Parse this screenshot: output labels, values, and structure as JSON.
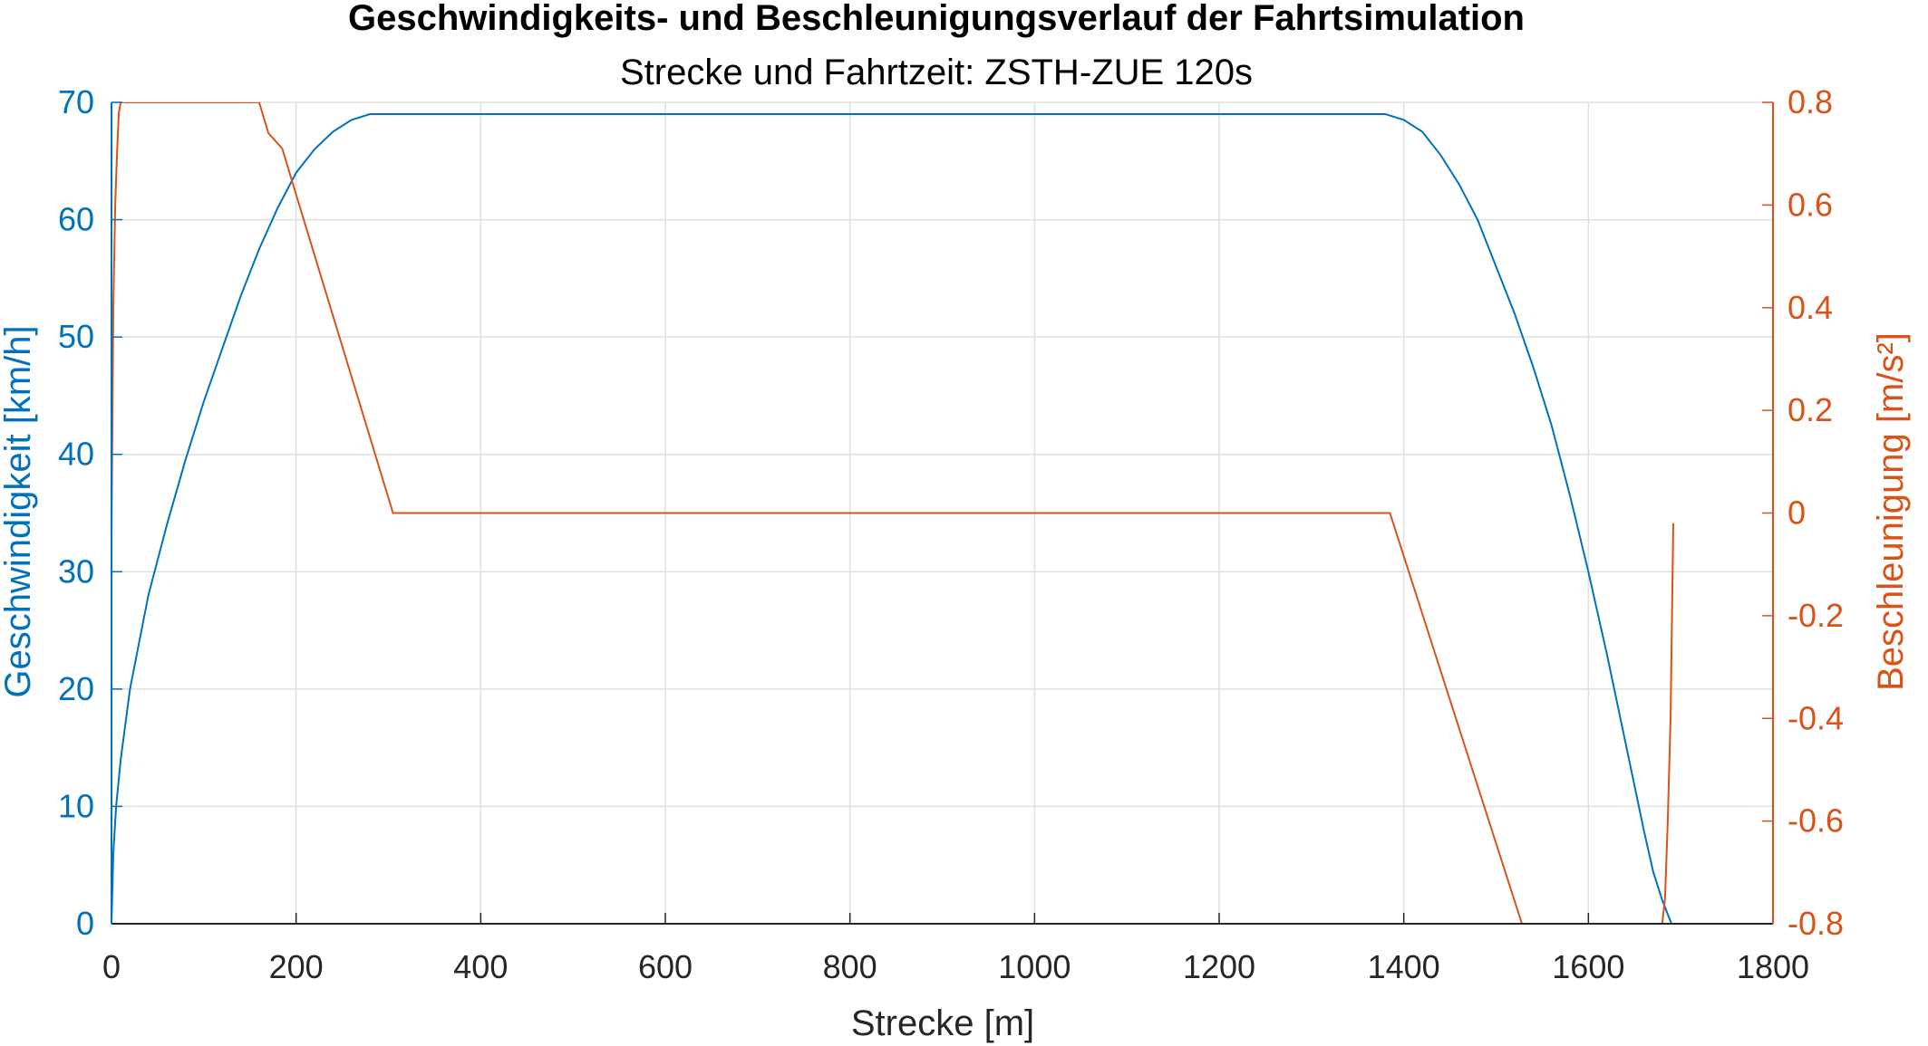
{
  "chart_data": {
    "type": "line",
    "title": "Geschwindigkeits- und Beschleunigungsverlauf der Fahrtsimulation",
    "subtitle": "Strecke und Fahrtzeit: ZSTH-ZUE 120s",
    "xlabel": "Strecke [m]",
    "ylabel_left": "Geschwindigkeit [km/h]",
    "ylabel_right": "Beschleunigung [m/s²]",
    "xlim": [
      0,
      1800
    ],
    "ylim_left": [
      0,
      70
    ],
    "ylim_right": [
      -0.8,
      0.8
    ],
    "xticks": [
      "0",
      "200",
      "400",
      "600",
      "800",
      "1000",
      "1200",
      "1400",
      "1600",
      "1800"
    ],
    "yticks_left": [
      "0",
      "10",
      "20",
      "30",
      "40",
      "50",
      "60",
      "70"
    ],
    "yticks_right": [
      "-0.8",
      "-0.6",
      "-0.4",
      "-0.2",
      "0",
      "0.2",
      "0.4",
      "0.6",
      "0.8"
    ],
    "grid": true,
    "colors": {
      "left": "#0072BD",
      "right": "#D95319",
      "axis": "#262626",
      "grid": "#DFDFDF"
    },
    "series": [
      {
        "axis": "left",
        "x": [
          0,
          2,
          5,
          10,
          20,
          40,
          60,
          80,
          100,
          120,
          140,
          160,
          180,
          200,
          220,
          240,
          260,
          280,
          300,
          310,
          1380,
          1400,
          1420,
          1440,
          1460,
          1480,
          1500,
          1520,
          1540,
          1560,
          1580,
          1600,
          1620,
          1640,
          1660,
          1670,
          1680,
          1685,
          1690,
          1692
        ],
        "y": [
          0,
          6,
          10,
          14,
          20,
          28,
          34,
          39.5,
          44.5,
          49,
          53.5,
          57.5,
          61,
          64,
          66,
          67.5,
          68.5,
          69,
          69,
          69,
          69,
          68.5,
          67.5,
          65.5,
          63,
          60,
          56,
          52,
          47.5,
          42.5,
          36.5,
          30,
          23,
          15.5,
          8,
          4.5,
          2,
          1,
          0,
          0
        ]
      },
      {
        "axis": "right",
        "x": [
          0,
          2,
          4,
          6,
          8,
          10,
          160,
          170,
          175,
          180,
          185,
          190,
          200,
          305,
          1385,
          1528,
          1680,
          1683,
          1686,
          1689,
          1692
        ],
        "y": [
          -0.05,
          0.4,
          0.6,
          0.7,
          0.78,
          0.8,
          0.8,
          0.74,
          0.73,
          0.72,
          0.71,
          0.68,
          0.62,
          0,
          0,
          -0.8,
          -0.8,
          -0.75,
          -0.6,
          -0.4,
          -0.02
        ]
      }
    ]
  }
}
